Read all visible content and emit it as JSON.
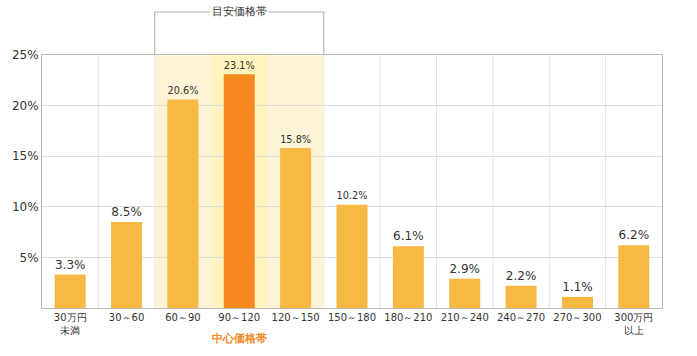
{
  "chart_data": {
    "type": "bar",
    "categories": [
      "30万円\n未満",
      "30～60",
      "60～90",
      "90～120",
      "120～150",
      "150～180",
      "180～210",
      "210～240",
      "240～270",
      "270～300",
      "300万円\n以上"
    ],
    "values": [
      3.3,
      8.5,
      20.6,
      23.1,
      15.8,
      10.2,
      6.1,
      2.9,
      2.2,
      1.1,
      6.2
    ],
    "value_labels": [
      "3.3%",
      "8.5%",
      "20.6%",
      "23.1%",
      "15.8%",
      "10.2%",
      "6.1%",
      "2.9%",
      "2.2%",
      "1.1%",
      "6.2%"
    ],
    "colors": [
      "#f7b944",
      "#f7b944",
      "#f7b944",
      "#f5891f",
      "#f7b944",
      "#f7b944",
      "#f7b944",
      "#f7b944",
      "#f7b944",
      "#f7b944",
      "#f7b944"
    ],
    "data_labels": true,
    "ylim": [
      0,
      25
    ],
    "yticks": [
      {
        "value": 5,
        "label": "5%"
      },
      {
        "value": 10,
        "label": "10%"
      },
      {
        "value": 15,
        "label": "15%"
      },
      {
        "value": 20,
        "label": "20%"
      },
      {
        "value": 25,
        "label": "25%"
      }
    ],
    "grid": true,
    "annotations": [
      {
        "text": "目安価格帯",
        "categories": [
          "60～90",
          "120～150"
        ]
      },
      {
        "text": "中心価格帯",
        "category": "90～120"
      }
    ]
  }
}
